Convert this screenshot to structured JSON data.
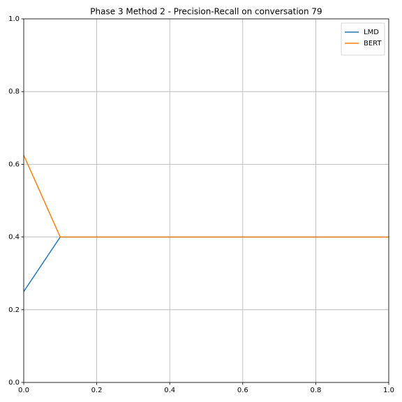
{
  "chart_data": {
    "type": "line",
    "title": "Phase 3 Method 2 - Precision-Recall on conversation 79",
    "x": [
      0,
      0.1,
      1
    ],
    "series": [
      {
        "name": "LMD",
        "color": "#1f77b4",
        "values": [
          0.25,
          0.4,
          0.4
        ]
      },
      {
        "name": "BERT",
        "color": "#ff7f0e",
        "values": [
          0.625,
          0.4,
          0.4
        ]
      }
    ],
    "xlim": [
      0,
      1
    ],
    "ylim": [
      0,
      1
    ],
    "xticks": [
      {
        "value": 0,
        "label": "0.0"
      },
      0.2,
      0.4,
      0.6,
      0.8,
      {
        "value": 1,
        "label": "1.0"
      }
    ],
    "yticks": [
      {
        "value": 0,
        "label": "0.0"
      },
      0.2,
      0.4,
      0.6,
      0.8,
      {
        "value": 1,
        "label": "1.0"
      }
    ],
    "grid": true,
    "legend": "upper right"
  }
}
